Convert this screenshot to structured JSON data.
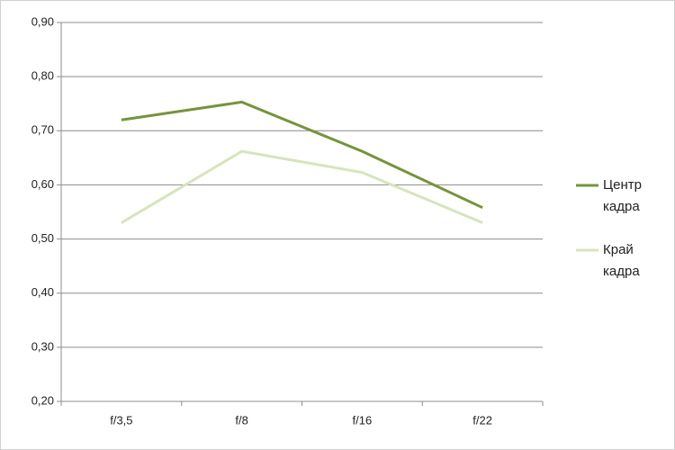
{
  "chart_data": {
    "type": "line",
    "categories": [
      "f/3,5",
      "f/8",
      "f/16",
      "f/22"
    ],
    "series": [
      {
        "name": "Центр кадра",
        "color": "#77933c",
        "values": [
          0.72,
          0.753,
          0.662,
          0.558
        ]
      },
      {
        "name": "Край кадра",
        "color": "#d7e4bd",
        "values": [
          0.53,
          0.662,
          0.623,
          0.53
        ]
      }
    ],
    "ylim": [
      0.2,
      0.9
    ],
    "yticks": [
      {
        "value": 0.2,
        "label": "0,20"
      },
      {
        "value": 0.3,
        "label": "0,30"
      },
      {
        "value": 0.4,
        "label": "0,40"
      },
      {
        "value": 0.5,
        "label": "0,50"
      },
      {
        "value": 0.6,
        "label": "0,60"
      },
      {
        "value": 0.7,
        "label": "0,70"
      },
      {
        "value": 0.8,
        "label": "0,80"
      },
      {
        "value": 0.9,
        "label": "0,90"
      }
    ],
    "grid": true,
    "legend": "right"
  }
}
